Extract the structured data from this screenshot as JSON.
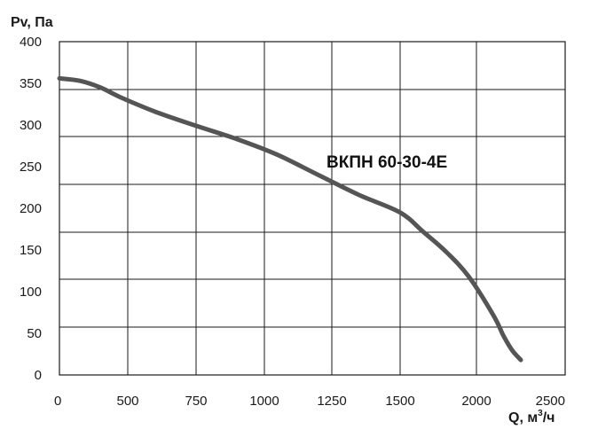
{
  "chart_data": {
    "type": "line",
    "title": "",
    "ylabel": "Pv, Па",
    "xlabel_main": "Q, м",
    "xlabel_sup": "3",
    "xlabel_tail": "/ч",
    "xlim": [
      0,
      2500
    ],
    "ylim": [
      0,
      400
    ],
    "x_ticks": [
      "0",
      "500",
      "750",
      "1000",
      "1250",
      "1500",
      "2000",
      "2500"
    ],
    "y_ticks": [
      "0",
      "50",
      "100",
      "150",
      "200",
      "250",
      "300",
      "350",
      "400"
    ],
    "grid": true,
    "series": [
      {
        "name": "ВКПН 60-30-4Е",
        "color": "#555555",
        "x": [
          0,
          150,
          300,
          450,
          600,
          750,
          900,
          1050,
          1200,
          1350,
          1500,
          1650,
          1800,
          1950,
          2100,
          2150,
          2200,
          2250
        ],
        "y": [
          356,
          353,
          345,
          333,
          316,
          299,
          283,
          264,
          240,
          216,
          195,
          172,
          148,
          118,
          70,
          48,
          30,
          18
        ]
      }
    ]
  }
}
